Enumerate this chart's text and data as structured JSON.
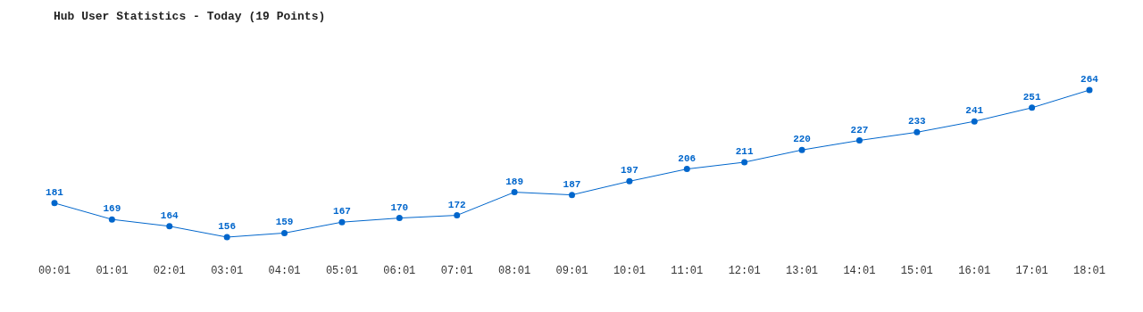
{
  "chart_data": {
    "type": "line",
    "title": "Hub User Statistics - Today (19 Points)",
    "categories": [
      "00:01",
      "01:01",
      "02:01",
      "03:01",
      "04:01",
      "05:01",
      "06:01",
      "07:01",
      "08:01",
      "09:01",
      "10:01",
      "11:01",
      "12:01",
      "13:01",
      "14:01",
      "15:01",
      "16:01",
      "17:01",
      "18:01"
    ],
    "series": [
      {
        "color": "#0066cc",
        "values": [
          181,
          169,
          164,
          156,
          159,
          167,
          170,
          172,
          189,
          187,
          197,
          206,
          211,
          220,
          227,
          233,
          241,
          251,
          264
        ]
      }
    ],
    "data_labels": true,
    "marker": "circle",
    "line_style": "solid",
    "tick_labels": "x"
  }
}
